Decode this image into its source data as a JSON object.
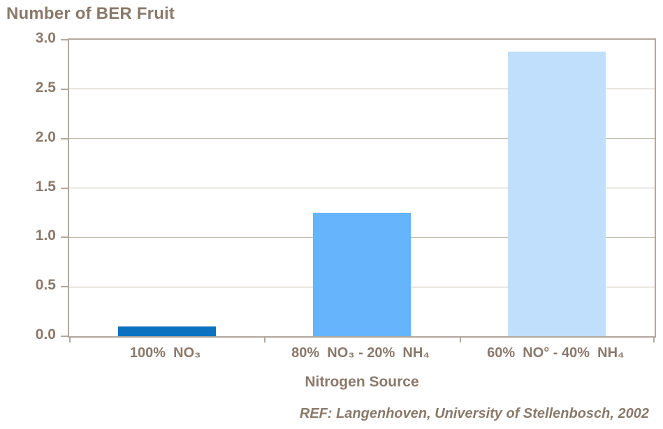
{
  "chart_data": {
    "type": "bar",
    "title": "Number of BER Fruit",
    "xlabel": "Nitrogen Source",
    "ylabel": "Number of BER Fruit",
    "categories": [
      "100%  NO₃",
      "80%  NO₃ - 20%  NH₄",
      "60%  NO° - 40%  NH₄"
    ],
    "values": [
      0.1,
      1.25,
      2.88
    ],
    "bar_colors": [
      "#0b72c2",
      "#66b4fb",
      "#bfdffc"
    ],
    "ylim": [
      0,
      3
    ],
    "ytick_step": 0.5,
    "ytick_labels": [
      "0.0",
      "0.5",
      "1.0",
      "1.5",
      "2.0",
      "2.5",
      "3.0"
    ],
    "grid": true,
    "legend": false
  },
  "footer": {
    "reference": "REF: Langenhoven, University of Stellenbosch, 2002"
  },
  "colors": {
    "text": "#8a796a",
    "plot_border": "#b2a89c",
    "gridline": "#c4bbb1",
    "background": "#ffffff"
  }
}
